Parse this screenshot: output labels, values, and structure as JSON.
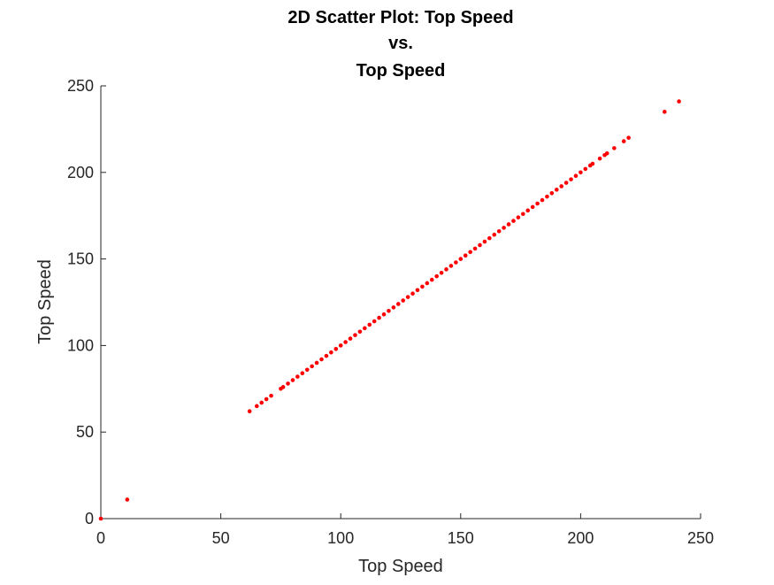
{
  "chart_data": {
    "type": "scatter",
    "title_lines": [
      "2D Scatter Plot: Top Speed",
      "vs.",
      "Top Speed"
    ],
    "xlabel": "Top Speed",
    "ylabel": "Top Speed",
    "xlim": [
      0,
      250
    ],
    "ylim": [
      0,
      250
    ],
    "xticks": [
      "0",
      "50",
      "100",
      "150",
      "200",
      "250"
    ],
    "yticks": [
      "0",
      "50",
      "100",
      "150",
      "200",
      "250"
    ],
    "grid": false,
    "marker_color": "#ff0000",
    "points": [
      [
        0,
        0
      ],
      [
        11,
        11
      ],
      [
        62,
        62
      ],
      [
        65,
        65
      ],
      [
        67,
        67
      ],
      [
        69,
        69
      ],
      [
        71,
        71
      ],
      [
        75,
        75
      ],
      [
        76,
        76
      ],
      [
        78,
        78
      ],
      [
        80,
        80
      ],
      [
        82,
        82
      ],
      [
        84,
        84
      ],
      [
        86,
        86
      ],
      [
        88,
        88
      ],
      [
        90,
        90
      ],
      [
        92,
        92
      ],
      [
        94,
        94
      ],
      [
        96,
        96
      ],
      [
        98,
        98
      ],
      [
        100,
        100
      ],
      [
        102,
        102
      ],
      [
        104,
        104
      ],
      [
        106,
        106
      ],
      [
        108,
        108
      ],
      [
        110,
        110
      ],
      [
        112,
        112
      ],
      [
        114,
        114
      ],
      [
        116,
        116
      ],
      [
        118,
        118
      ],
      [
        120,
        120
      ],
      [
        122,
        122
      ],
      [
        124,
        124
      ],
      [
        126,
        126
      ],
      [
        128,
        128
      ],
      [
        130,
        130
      ],
      [
        132,
        132
      ],
      [
        134,
        134
      ],
      [
        136,
        136
      ],
      [
        138,
        138
      ],
      [
        140,
        140
      ],
      [
        142,
        142
      ],
      [
        144,
        144
      ],
      [
        146,
        146
      ],
      [
        148,
        148
      ],
      [
        150,
        150
      ],
      [
        152,
        152
      ],
      [
        154,
        154
      ],
      [
        156,
        156
      ],
      [
        158,
        158
      ],
      [
        160,
        160
      ],
      [
        162,
        162
      ],
      [
        164,
        164
      ],
      [
        166,
        166
      ],
      [
        168,
        168
      ],
      [
        170,
        170
      ],
      [
        172,
        172
      ],
      [
        174,
        174
      ],
      [
        176,
        176
      ],
      [
        178,
        178
      ],
      [
        180,
        180
      ],
      [
        182,
        182
      ],
      [
        184,
        184
      ],
      [
        186,
        186
      ],
      [
        188,
        188
      ],
      [
        190,
        190
      ],
      [
        192,
        192
      ],
      [
        194,
        194
      ],
      [
        196,
        196
      ],
      [
        198,
        198
      ],
      [
        200,
        200
      ],
      [
        202,
        202
      ],
      [
        204,
        204
      ],
      [
        205,
        205
      ],
      [
        208,
        208
      ],
      [
        210,
        210
      ],
      [
        211,
        211
      ],
      [
        214,
        214
      ],
      [
        218,
        218
      ],
      [
        220,
        220
      ],
      [
        235,
        235
      ],
      [
        241,
        241
      ]
    ]
  }
}
